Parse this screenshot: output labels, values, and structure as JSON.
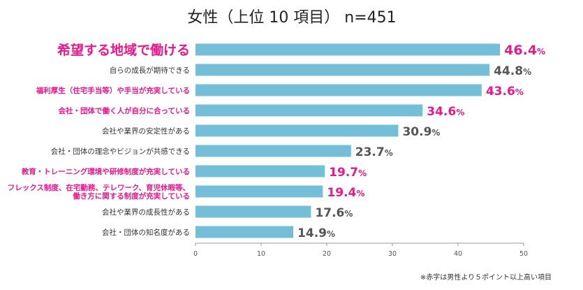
{
  "chart_data": {
    "type": "bar",
    "orientation": "horizontal",
    "title": "女性（上位 10 項目） n=451",
    "categories": [
      "希望する地域で働ける",
      "自らの成長が期待できる",
      "福利厚生（住宅手当等）や手当が充実している",
      "会社・団体で働く人が自分に合っている",
      "会社や業界の安定性がある",
      "会社・団体の理念やビジョンが共感できる",
      "教育・トレーニング環境や研修制度が充実している",
      "フレックス制度、在宅勤務、テレワーク、育児休暇等、\n働き方に関する制度が充実している",
      "会社や業界の成長性がある",
      "会社・団体の知名度がある"
    ],
    "values": [
      46.4,
      44.8,
      43.6,
      34.6,
      30.9,
      23.7,
      19.7,
      19.4,
      17.6,
      14.9
    ],
    "value_labels": [
      "46.4",
      "44.8",
      "43.6",
      "34.6",
      "30.9",
      "23.7",
      "19.7",
      "19.4",
      "17.6",
      "14.9"
    ],
    "value_unit": "%",
    "highlighted": [
      true,
      false,
      true,
      true,
      false,
      false,
      true,
      true,
      false,
      false
    ],
    "xlim": [
      0,
      50
    ],
    "xticks": [
      0,
      10,
      20,
      30,
      40,
      50
    ],
    "grid": false,
    "note": "※赤字は男性より５ポイント以上高い項目",
    "colors": {
      "bar": "#74bed8",
      "highlight": "#e8198b",
      "value_default": "#555555",
      "axis": "#999999"
    }
  }
}
